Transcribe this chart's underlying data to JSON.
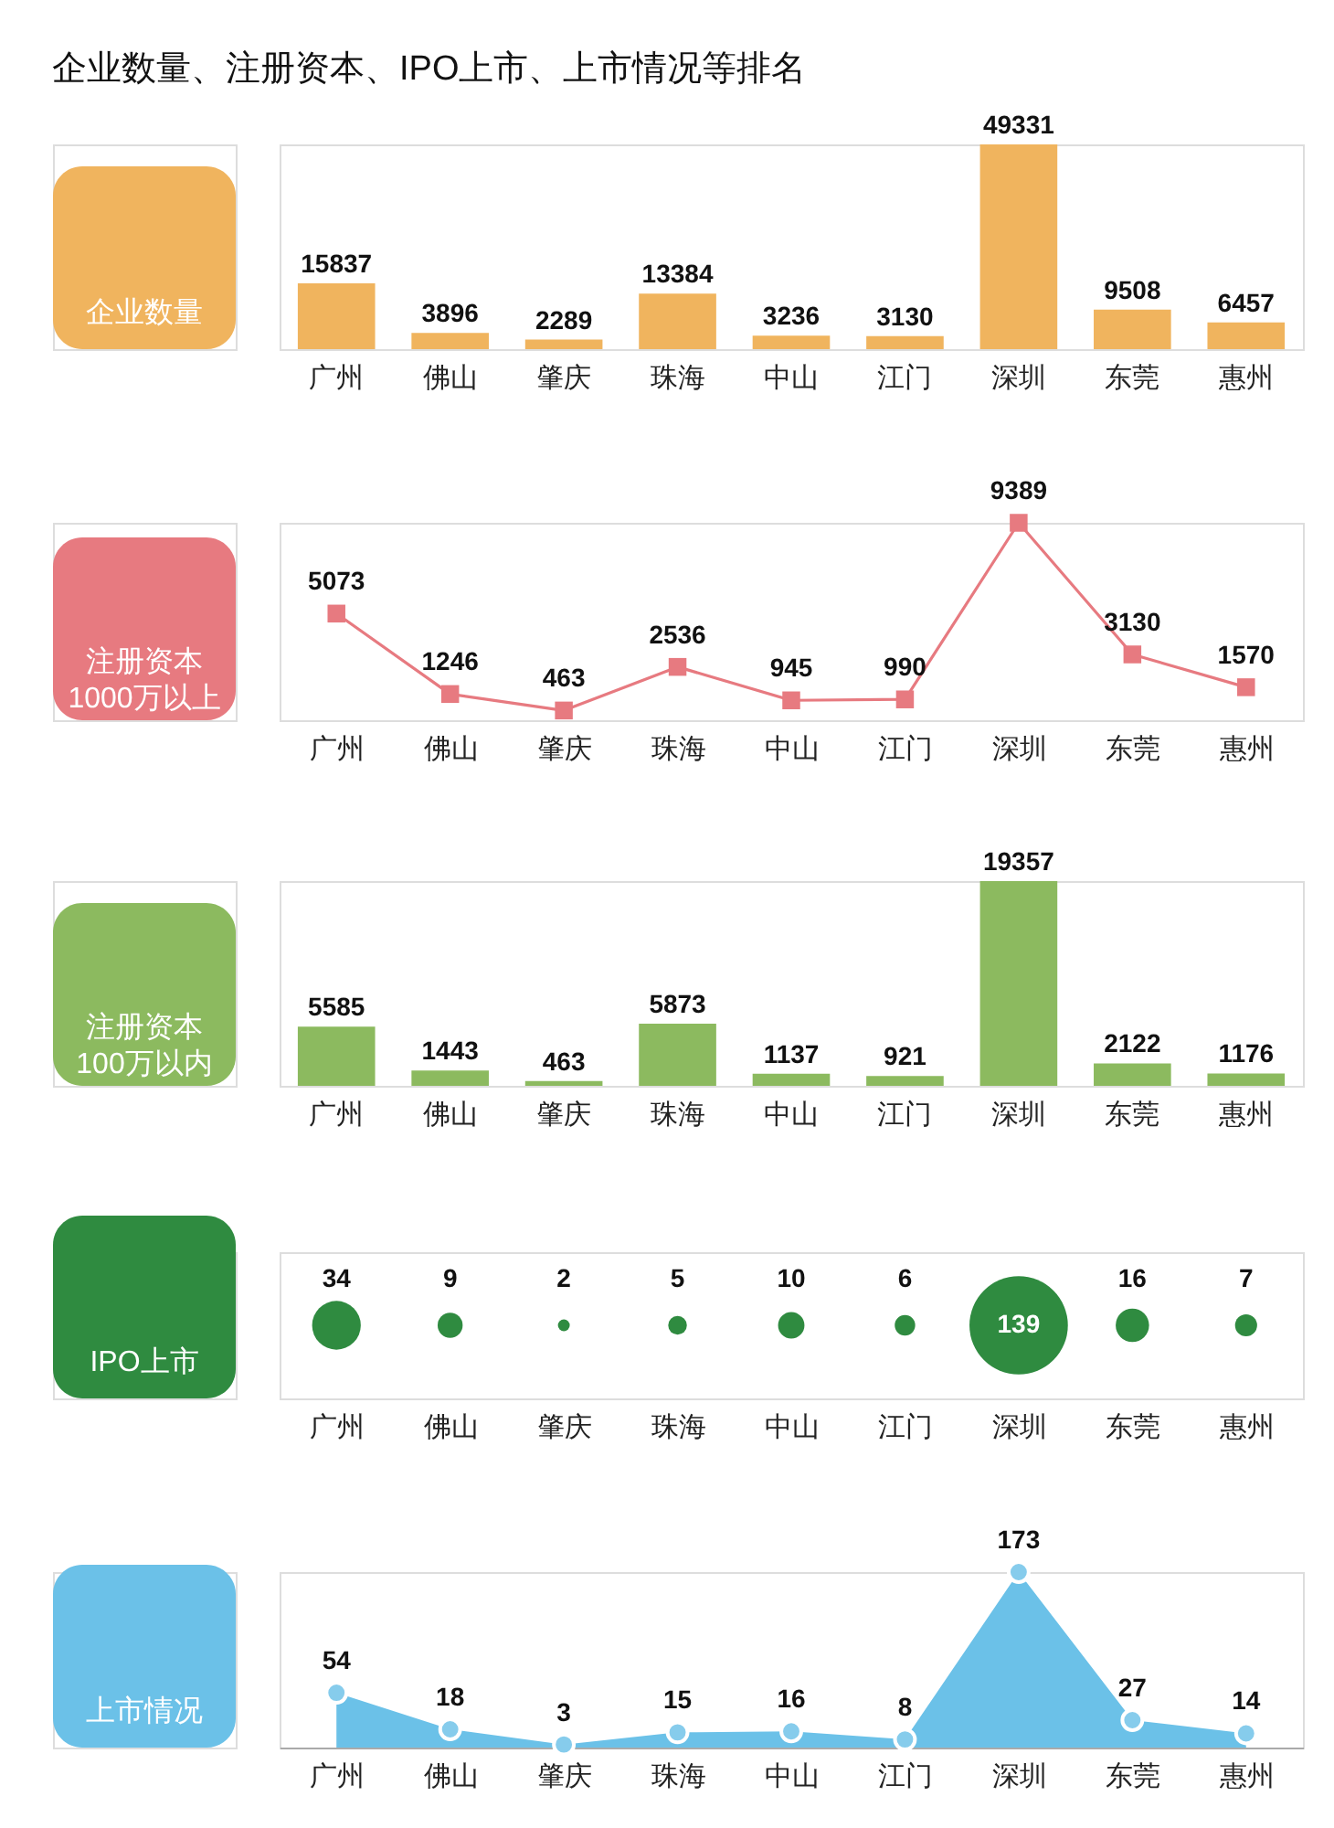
{
  "chart_data": [
    {
      "type": "bar",
      "title": "企业数量、注册资本、IPO上市、上市情况等排名",
      "ylabel": "企业数量",
      "categories": [
        "广州",
        "佛山",
        "肇庆",
        "珠海",
        "中山",
        "江门",
        "深圳",
        "东莞",
        "惠州"
      ],
      "values": [
        15837,
        3896,
        2289,
        13384,
        3236,
        3130,
        49331,
        9508,
        6457
      ],
      "color": "#f0b45e",
      "data_labels": true
    },
    {
      "type": "line",
      "ylabel": "注册资本\n1000万以上",
      "categories": [
        "广州",
        "佛山",
        "肇庆",
        "珠海",
        "中山",
        "江门",
        "深圳",
        "东莞",
        "惠州"
      ],
      "values": [
        5073,
        1246,
        463,
        2536,
        945,
        990,
        9389,
        3130,
        1570
      ],
      "color": "#e77a80",
      "marker": "square",
      "line_style": "solid",
      "data_labels": true
    },
    {
      "type": "bar",
      "ylabel": "注册资本\n100万以内",
      "categories": [
        "广州",
        "佛山",
        "肇庆",
        "珠海",
        "中山",
        "江门",
        "深圳",
        "东莞",
        "惠州"
      ],
      "values": [
        5585,
        1443,
        463,
        5873,
        1137,
        921,
        19357,
        2122,
        1176
      ],
      "color": "#8cba5f",
      "data_labels": true
    },
    {
      "type": "other",
      "ylabel": "IPO上市",
      "categories": [
        "广州",
        "佛山",
        "肇庆",
        "珠海",
        "中山",
        "江门",
        "深圳",
        "东莞",
        "惠州"
      ],
      "values": [
        34,
        9,
        2,
        5,
        10,
        6,
        139,
        16,
        7
      ],
      "color": "#2f8b40",
      "data_labels": true
    },
    {
      "type": "area",
      "ylabel": "上市情况",
      "categories": [
        "广州",
        "佛山",
        "肇庆",
        "珠海",
        "中山",
        "江门",
        "深圳",
        "东莞",
        "惠州"
      ],
      "values": [
        54,
        18,
        3,
        15,
        16,
        8,
        173,
        27,
        14
      ],
      "color": "#6bc1e8",
      "marker": "circle",
      "data_labels": true
    }
  ]
}
